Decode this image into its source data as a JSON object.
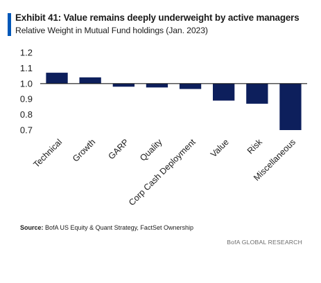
{
  "header": {
    "title": "Exhibit 41: Value remains deeply underweight by active managers",
    "subtitle": "Relative Weight in Mutual Fund holdings (Jan. 2023)"
  },
  "chart_data": {
    "type": "bar",
    "categories": [
      "Technical",
      "Growth",
      "GARP",
      "Quality",
      "Corp Cash Deployment",
      "Value",
      "Risk",
      "Miscellaneous"
    ],
    "values": [
      1.07,
      1.04,
      0.98,
      0.975,
      0.965,
      0.89,
      0.87,
      0.7
    ],
    "baseline": 1.0,
    "ylim": [
      0.7,
      1.2
    ],
    "yticks": [
      "0.7",
      "0.8",
      "0.9",
      "1.0",
      "1.1",
      "1.2"
    ],
    "bar_color": "#0d1f5c",
    "grid": false
  },
  "source": {
    "label": "Source:",
    "text": "BofA US Equity & Quant Strategy, FactSet Ownership"
  },
  "footer": {
    "brand": "BofA GLOBAL RESEARCH"
  }
}
